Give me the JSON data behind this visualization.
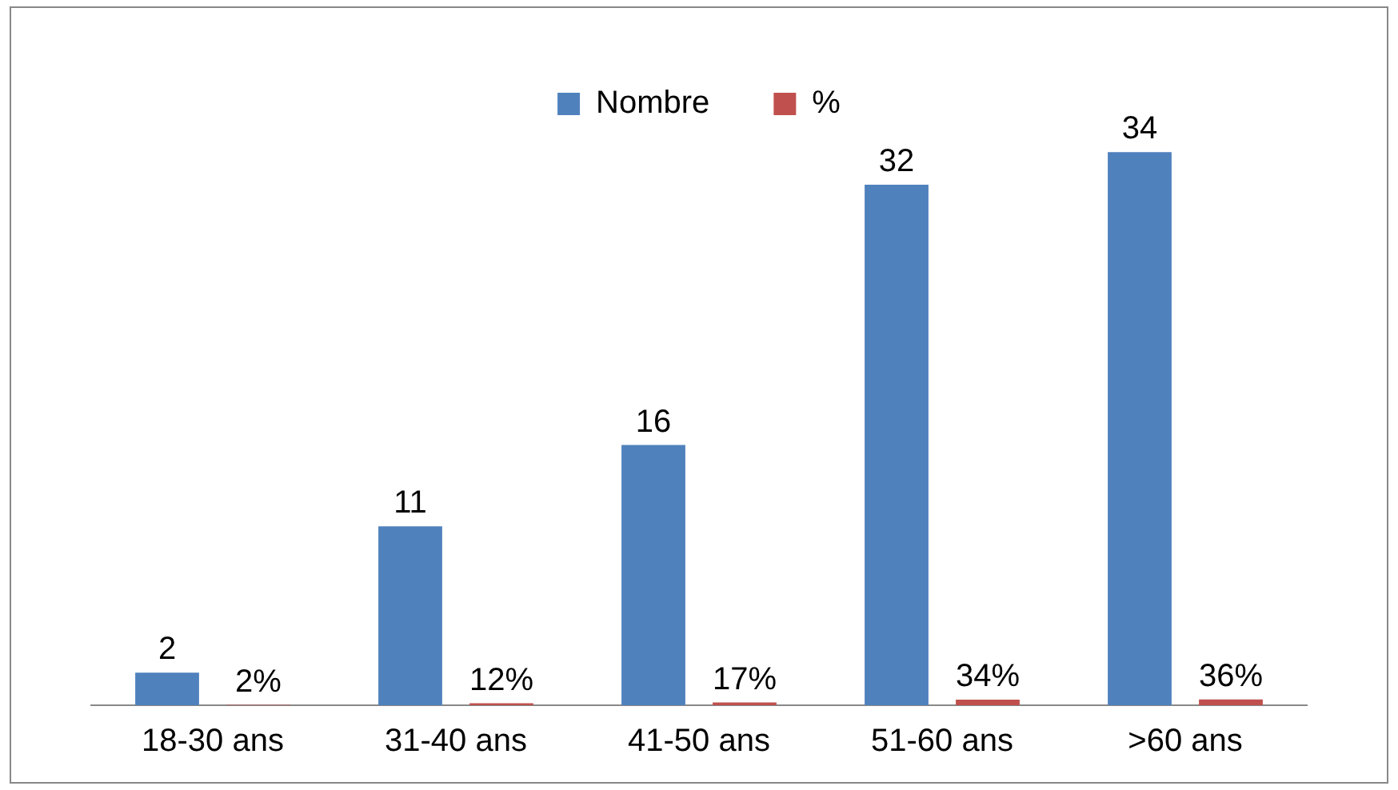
{
  "chart_data": {
    "type": "bar",
    "categories": [
      "18-30 ans",
      "31-40 ans",
      "41-50 ans",
      "51-60 ans",
      ">60 ans"
    ],
    "series": [
      {
        "name": "Nombre",
        "color": "#4f81bd",
        "values": [
          2,
          11,
          16,
          32,
          34
        ]
      },
      {
        "name": "%",
        "color": "#c0504d",
        "values": [
          0.02,
          0.12,
          0.17,
          0.34,
          0.36
        ],
        "value_labels": [
          "2%",
          "12%",
          "17%",
          "34%",
          "36%"
        ]
      }
    ],
    "data_labels": true,
    "legend": "top",
    "grid": false,
    "tick_labels": "x"
  }
}
